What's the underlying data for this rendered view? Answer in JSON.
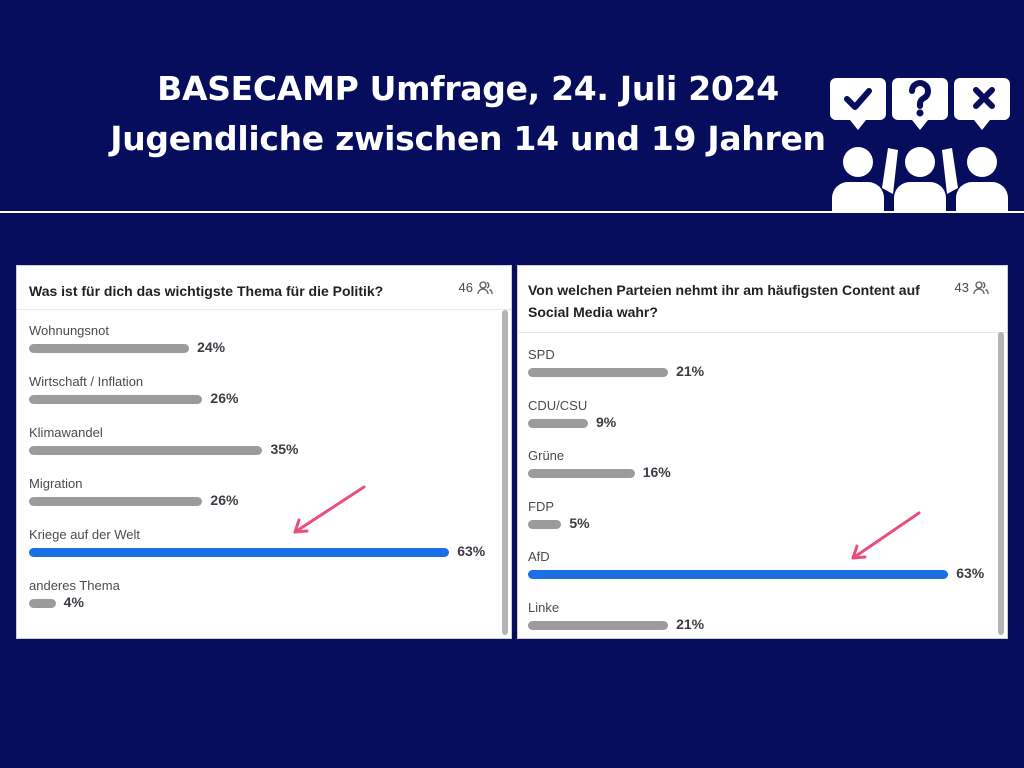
{
  "header": {
    "line1": "BASECAMP Umfrage, 24. Juli 2024",
    "line2": "Jugendliche zwischen 14 und 19 Jahren",
    "logo_icon": "survey-people-icon"
  },
  "colors": {
    "background": "#060d5d",
    "highlight_bar": "#1b6ee3",
    "default_bar": "#9b9b9b",
    "arrow": "#e8507a"
  },
  "polls": [
    {
      "question": "Was ist für dich das wichtigste Thema für die Politik?",
      "participants": "46",
      "participants_icon": "people-icon",
      "options": [
        {
          "label": "Wohnungsnot",
          "percent_text": "24%",
          "percent": 24,
          "highlight": false
        },
        {
          "label": "Wirtschaft / Inflation",
          "percent_text": "26%",
          "percent": 26,
          "highlight": false
        },
        {
          "label": "Klimawandel",
          "percent_text": "35%",
          "percent": 35,
          "highlight": false
        },
        {
          "label": "Migration",
          "percent_text": "26%",
          "percent": 26,
          "highlight": false
        },
        {
          "label": "Kriege auf der Welt",
          "percent_text": "63%",
          "percent": 63,
          "highlight": true
        },
        {
          "label": "anderes Thema",
          "percent_text": "4%",
          "percent": 4,
          "highlight": false
        }
      ]
    },
    {
      "question": "Von welchen Parteien nehmt ihr am häufigsten Content auf Social Media wahr?",
      "participants": "43",
      "participants_icon": "people-icon",
      "options": [
        {
          "label": "SPD",
          "percent_text": "21%",
          "percent": 21,
          "highlight": false
        },
        {
          "label": "CDU/CSU",
          "percent_text": "9%",
          "percent": 9,
          "highlight": false
        },
        {
          "label": "Grüne",
          "percent_text": "16%",
          "percent": 16,
          "highlight": false
        },
        {
          "label": "FDP",
          "percent_text": "5%",
          "percent": 5,
          "highlight": false
        },
        {
          "label": "AfD",
          "percent_text": "63%",
          "percent": 63,
          "highlight": true
        },
        {
          "label": "Linke",
          "percent_text": "21%",
          "percent": 21,
          "highlight": false
        }
      ]
    }
  ]
}
